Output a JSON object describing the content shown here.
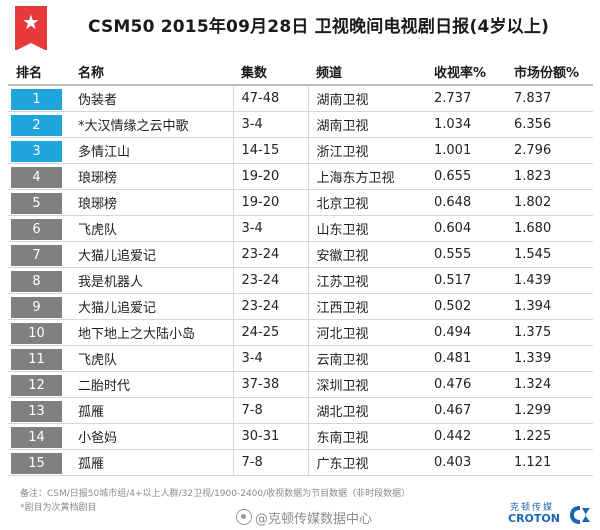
{
  "header": {
    "title": "CSM50   2015年09月28日  卫视晚间电视剧日报(4岁以上)",
    "badge_icon": "star-icon",
    "badge_color": "#e73b3b"
  },
  "table": {
    "columns": [
      "排名",
      "名称",
      "集数",
      "频道",
      "收视率%",
      "市场份额%"
    ],
    "rows": [
      {
        "rank": "1",
        "name": "伪装者",
        "episodes": "47-48",
        "channel": "湖南卫视",
        "rating": "2.737",
        "share": "7.837"
      },
      {
        "rank": "2",
        "name": "*大汉情缘之云中歌",
        "episodes": "3-4",
        "channel": "湖南卫视",
        "rating": "1.034",
        "share": "6.356"
      },
      {
        "rank": "3",
        "name": "多情江山",
        "episodes": "14-15",
        "channel": "浙江卫视",
        "rating": "1.001",
        "share": "2.796"
      },
      {
        "rank": "4",
        "name": "琅琊榜",
        "episodes": "19-20",
        "channel": "上海东方卫视",
        "rating": "0.655",
        "share": "1.823"
      },
      {
        "rank": "5",
        "name": "琅琊榜",
        "episodes": "19-20",
        "channel": "北京卫视",
        "rating": "0.648",
        "share": "1.802"
      },
      {
        "rank": "6",
        "name": "飞虎队",
        "episodes": "3-4",
        "channel": "山东卫视",
        "rating": "0.604",
        "share": "1.680"
      },
      {
        "rank": "7",
        "name": "大猫儿追爱记",
        "episodes": "23-24",
        "channel": "安徽卫视",
        "rating": "0.555",
        "share": "1.545"
      },
      {
        "rank": "8",
        "name": "我是机器人",
        "episodes": "23-24",
        "channel": "江苏卫视",
        "rating": "0.517",
        "share": "1.439"
      },
      {
        "rank": "9",
        "name": "大猫儿追爱记",
        "episodes": "23-24",
        "channel": "江西卫视",
        "rating": "0.502",
        "share": "1.394"
      },
      {
        "rank": "10",
        "name": "地下地上之大陆小岛",
        "episodes": "24-25",
        "channel": "河北卫视",
        "rating": "0.494",
        "share": "1.375"
      },
      {
        "rank": "11",
        "name": "飞虎队",
        "episodes": "3-4",
        "channel": "云南卫视",
        "rating": "0.481",
        "share": "1.339"
      },
      {
        "rank": "12",
        "name": "二胎时代",
        "episodes": "37-38",
        "channel": "深圳卫视",
        "rating": "0.476",
        "share": "1.324"
      },
      {
        "rank": "13",
        "name": "孤雁",
        "episodes": "7-8",
        "channel": "湖北卫视",
        "rating": "0.467",
        "share": "1.299"
      },
      {
        "rank": "14",
        "name": "小爸妈",
        "episodes": "30-31",
        "channel": "东南卫视",
        "rating": "0.442",
        "share": "1.225"
      },
      {
        "rank": "15",
        "name": "孤雁",
        "episodes": "7-8",
        "channel": "广东卫视",
        "rating": "0.403",
        "share": "1.121"
      }
    ],
    "top_rank_color": "#1ea5dc",
    "other_rank_color": "#808080"
  },
  "footer": {
    "note": "备注：CSM/日报50城市组/4+以上人群/32卫视/1900-2400/收视数据为节目数据（非时段数据）",
    "note2": "*剧目为次黄档剧目",
    "weibo": "@克顿传媒数据中心",
    "logo_cn": "克顿传媒",
    "logo_en": "CROTON"
  }
}
